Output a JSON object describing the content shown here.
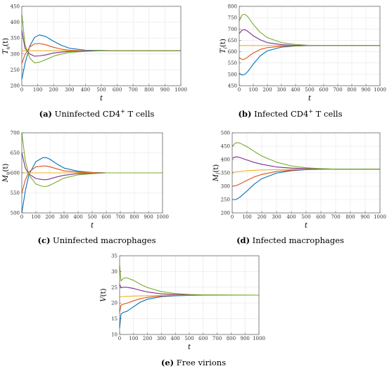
{
  "colors": [
    "#0072BD",
    "#D95319",
    "#EDB120",
    "#7E2F8E",
    "#77AC30"
  ],
  "chart_data": [
    {
      "type": "line",
      "id": "a",
      "ylabel": "T_u(t)",
      "ylabel_main": "T",
      "ylabel_sub": "u",
      "ylabel_arg": "(t)",
      "xlabel": "t",
      "xlim": [
        0,
        1000
      ],
      "ylim": [
        200,
        450
      ],
      "xticks": [
        "0",
        "100",
        "200",
        "300",
        "400",
        "500",
        "600",
        "700",
        "800",
        "900",
        "1000"
      ],
      "yticks": [
        "200",
        "250",
        "300",
        "350",
        "400",
        "450"
      ],
      "grid": true,
      "caption_tag": "(a)",
      "caption_text": " Uninfected CD4",
      "caption_sup": "+",
      "caption_tail": " T cells",
      "series": [
        {
          "x": [
            0,
            20,
            50,
            80,
            110,
            150,
            200,
            250,
            300,
            400,
            500,
            600,
            700,
            1000
          ],
          "y": [
            220,
            270,
            325,
            352,
            360,
            355,
            340,
            327,
            318,
            312,
            311,
            310,
            310,
            310
          ]
        },
        {
          "x": [
            0,
            20,
            50,
            80,
            110,
            150,
            200,
            250,
            300,
            400,
            500,
            600,
            700,
            1000
          ],
          "y": [
            270,
            298,
            322,
            332,
            333,
            329,
            321,
            315,
            312,
            310,
            310,
            310,
            310,
            310
          ]
        },
        {
          "x": [
            0,
            50,
            100,
            200,
            400,
            1000
          ],
          "y": [
            310,
            310,
            310,
            310,
            310,
            310
          ]
        },
        {
          "x": [
            0,
            20,
            50,
            80,
            110,
            150,
            200,
            250,
            300,
            400,
            500,
            600,
            700,
            1000
          ],
          "y": [
            375,
            318,
            300,
            293,
            294,
            297,
            303,
            306,
            308,
            309,
            310,
            310,
            310,
            310
          ]
        },
        {
          "x": [
            0,
            20,
            50,
            80,
            110,
            150,
            200,
            250,
            300,
            400,
            500,
            600,
            700,
            1000
          ],
          "y": [
            425,
            330,
            287,
            272,
            274,
            282,
            293,
            300,
            305,
            308,
            310,
            310,
            310,
            310
          ]
        }
      ]
    },
    {
      "type": "line",
      "id": "b",
      "ylabel": "T_i(t)",
      "ylabel_main": "T",
      "ylabel_sub": "i",
      "ylabel_arg": "(t)",
      "xlabel": "t",
      "xlim": [
        0,
        1000
      ],
      "ylim": [
        450,
        800
      ],
      "xticks": [
        "0",
        "100",
        "200",
        "300",
        "400",
        "500",
        "600",
        "700",
        "800",
        "900",
        "1000"
      ],
      "yticks": [
        "450",
        "500",
        "550",
        "600",
        "650",
        "700",
        "750",
        "800"
      ],
      "grid": true,
      "caption_tag": "(b)",
      "caption_text": " Infected CD4",
      "caption_sup": "+",
      "caption_tail": " T cells",
      "series": [
        {
          "x": [
            0,
            20,
            40,
            60,
            80,
            100,
            150,
            200,
            300,
            400,
            500,
            700,
            1000
          ],
          "y": [
            505,
            497,
            500,
            512,
            528,
            546,
            582,
            604,
            620,
            625,
            627,
            627,
            627
          ]
        },
        {
          "x": [
            0,
            20,
            40,
            60,
            80,
            100,
            150,
            200,
            300,
            400,
            500,
            700,
            1000
          ],
          "y": [
            575,
            565,
            568,
            576,
            586,
            594,
            610,
            618,
            624,
            626,
            627,
            627,
            627
          ]
        },
        {
          "x": [
            0,
            100,
            200,
            400,
            1000
          ],
          "y": [
            627,
            627,
            627,
            627,
            627
          ]
        },
        {
          "x": [
            0,
            20,
            40,
            60,
            80,
            100,
            150,
            200,
            300,
            400,
            500,
            700,
            1000
          ],
          "y": [
            680,
            695,
            697,
            690,
            680,
            670,
            652,
            640,
            631,
            628,
            627,
            627,
            627
          ]
        },
        {
          "x": [
            0,
            20,
            40,
            60,
            80,
            100,
            150,
            200,
            300,
            400,
            500,
            700,
            1000
          ],
          "y": [
            735,
            762,
            765,
            755,
            738,
            720,
            685,
            662,
            640,
            632,
            628,
            627,
            627
          ]
        }
      ]
    },
    {
      "type": "line",
      "id": "c",
      "ylabel": "M_u(t)",
      "ylabel_main": "M",
      "ylabel_sub": "u",
      "ylabel_arg": "(t)",
      "xlabel": "t",
      "xlim": [
        0,
        1000
      ],
      "ylim": [
        500,
        700
      ],
      "xticks": [
        "0",
        "100",
        "200",
        "300",
        "400",
        "500",
        "600",
        "700",
        "800",
        "900",
        "1000"
      ],
      "yticks": [
        "500",
        "550",
        "600",
        "650",
        "700"
      ],
      "grid": true,
      "caption_tag": "(c)",
      "caption_text": " Uninfected macrophages",
      "caption_sup": "",
      "caption_tail": "",
      "series": [
        {
          "x": [
            0,
            25,
            50,
            100,
            150,
            175,
            200,
            250,
            300,
            400,
            500,
            600,
            800,
            1000
          ],
          "y": [
            500,
            555,
            595,
            628,
            638,
            638,
            634,
            622,
            612,
            604,
            601,
            600,
            600,
            600
          ]
        },
        {
          "x": [
            0,
            25,
            50,
            100,
            150,
            175,
            200,
            250,
            300,
            400,
            500,
            600,
            800,
            1000
          ],
          "y": [
            550,
            582,
            602,
            615,
            617,
            617,
            615,
            610,
            605,
            602,
            601,
            600,
            600,
            600
          ]
        },
        {
          "x": [
            0,
            100,
            200,
            400,
            1000
          ],
          "y": [
            600,
            600,
            600,
            600,
            600
          ]
        },
        {
          "x": [
            0,
            25,
            50,
            100,
            150,
            175,
            200,
            250,
            300,
            400,
            500,
            600,
            800,
            1000
          ],
          "y": [
            650,
            612,
            597,
            586,
            583,
            583,
            585,
            590,
            594,
            598,
            599,
            600,
            600,
            600
          ]
        },
        {
          "x": [
            0,
            25,
            50,
            100,
            150,
            175,
            200,
            250,
            300,
            400,
            500,
            600,
            800,
            1000
          ],
          "y": [
            700,
            630,
            595,
            572,
            566,
            566,
            569,
            578,
            587,
            595,
            598,
            600,
            600,
            600
          ]
        }
      ]
    },
    {
      "type": "line",
      "id": "d",
      "ylabel": "M_i(t)",
      "ylabel_main": "M",
      "ylabel_sub": "i",
      "ylabel_arg": "(t)",
      "xlabel": "t",
      "xlim": [
        0,
        1000
      ],
      "ylim": [
        200,
        500
      ],
      "xticks": [
        "0",
        "100",
        "200",
        "300",
        "400",
        "500",
        "600",
        "700",
        "800",
        "900",
        "1000"
      ],
      "yticks": [
        "200",
        "250",
        "300",
        "350",
        "400",
        "450",
        "500"
      ],
      "grid": true,
      "caption_tag": "(d)",
      "caption_text": " Infected macrophages",
      "caption_sup": "",
      "caption_tail": "",
      "series": [
        {
          "x": [
            0,
            25,
            50,
            100,
            150,
            200,
            300,
            400,
            500,
            600,
            700,
            1000
          ],
          "y": [
            250,
            250,
            258,
            282,
            308,
            328,
            349,
            358,
            362,
            363,
            364,
            364
          ]
        },
        {
          "x": [
            0,
            25,
            50,
            100,
            150,
            200,
            300,
            400,
            500,
            600,
            700,
            1000
          ],
          "y": [
            300,
            302,
            308,
            322,
            335,
            344,
            355,
            360,
            363,
            364,
            364,
            364
          ]
        },
        {
          "x": [
            0,
            100,
            200,
            300,
            400,
            500,
            700,
            1000
          ],
          "y": [
            352,
            358,
            361,
            362,
            363,
            364,
            364,
            364
          ]
        },
        {
          "x": [
            0,
            25,
            50,
            100,
            150,
            200,
            300,
            400,
            500,
            600,
            700,
            1000
          ],
          "y": [
            405,
            410,
            408,
            398,
            389,
            382,
            372,
            368,
            366,
            365,
            364,
            364
          ]
        },
        {
          "x": [
            0,
            25,
            50,
            100,
            150,
            200,
            300,
            400,
            500,
            600,
            700,
            1000
          ],
          "y": [
            450,
            463,
            462,
            448,
            430,
            413,
            390,
            376,
            369,
            366,
            364,
            364
          ]
        }
      ]
    },
    {
      "type": "line",
      "id": "e",
      "ylabel": "V(t)",
      "ylabel_main": "V",
      "ylabel_sub": "",
      "ylabel_arg": "(t)",
      "xlabel": "t",
      "xlim": [
        0,
        1000
      ],
      "ylim": [
        10,
        35
      ],
      "xticks": [
        "0",
        "100",
        "200",
        "300",
        "400",
        "500",
        "600",
        "700",
        "800",
        "900",
        "1000"
      ],
      "yticks": [
        "10",
        "15",
        "20",
        "25",
        "30",
        "35"
      ],
      "grid": true,
      "caption_tag": "(e)",
      "caption_text": " Free virions",
      "caption_sup": "",
      "caption_tail": "",
      "series": [
        {
          "x": [
            0,
            10,
            25,
            50,
            100,
            150,
            200,
            300,
            400,
            500,
            600,
            1000
          ],
          "y": [
            12,
            16.5,
            17,
            17.3,
            18.8,
            20.3,
            21.2,
            22,
            22.3,
            22.4,
            22.5,
            22.5
          ]
        },
        {
          "x": [
            0,
            10,
            25,
            50,
            100,
            150,
            200,
            300,
            400,
            500,
            600,
            1000
          ],
          "y": [
            17,
            19.3,
            19.6,
            19.9,
            20.7,
            21.4,
            21.8,
            22.2,
            22.4,
            22.5,
            22.5,
            22.5
          ]
        },
        {
          "x": [
            0,
            10,
            25,
            50,
            100,
            200,
            300,
            400,
            600,
            1000
          ],
          "y": [
            22,
            22,
            22,
            22.1,
            22.2,
            22.3,
            22.4,
            22.5,
            22.5,
            22.5
          ]
        },
        {
          "x": [
            0,
            10,
            25,
            50,
            100,
            150,
            200,
            300,
            400,
            500,
            600,
            1000
          ],
          "y": [
            26,
            24.8,
            25,
            25,
            24.6,
            24,
            23.5,
            22.9,
            22.7,
            22.6,
            22.5,
            22.5
          ]
        },
        {
          "x": [
            0,
            10,
            25,
            50,
            100,
            150,
            200,
            300,
            400,
            500,
            600,
            1000
          ],
          "y": [
            32,
            27,
            27.8,
            28,
            27.2,
            25.9,
            24.9,
            23.6,
            23,
            22.7,
            22.6,
            22.5
          ]
        }
      ]
    }
  ]
}
